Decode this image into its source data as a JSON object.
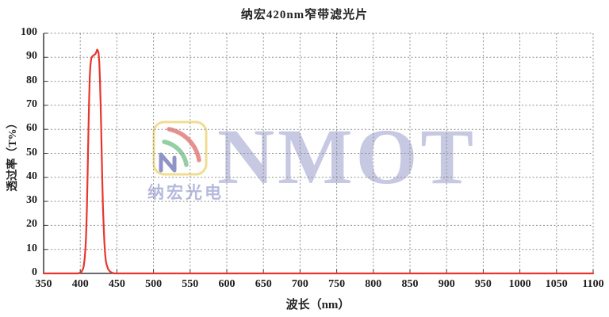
{
  "title": "纳宏420nm窄带滤光片",
  "watermark": {
    "text": "NMOT",
    "company": "纳宏光电"
  },
  "colors": {
    "curve": "#e8352d",
    "grid": "#909090",
    "axis": "#3a3a3a",
    "tick": "#3a3a3a",
    "text": "#242424",
    "watermark_text": "#c7c8e2",
    "watermark_company": "#b5badd",
    "logo_border": "#f0dd90",
    "logo_red": "#e89090",
    "logo_green": "#94cfa4",
    "logo_blue": "#8f94c6"
  },
  "chart_data": {
    "type": "line",
    "title": "纳宏420nm窄带滤光片",
    "xlabel": "波长（nm）",
    "ylabel": "透过率（T%）",
    "xlim": [
      350,
      1100
    ],
    "ylim": [
      0,
      100
    ],
    "x_ticks": [
      350,
      400,
      450,
      500,
      550,
      600,
      650,
      700,
      750,
      800,
      850,
      900,
      950,
      1000,
      1050,
      1100
    ],
    "y_ticks": [
      0,
      10,
      20,
      30,
      40,
      50,
      60,
      70,
      80,
      90,
      100
    ],
    "grid": "dashed",
    "legend": "none",
    "series": [
      {
        "name": "transmittance",
        "color": "#e8352d",
        "points": [
          [
            350,
            0
          ],
          [
            370,
            0
          ],
          [
            390,
            0
          ],
          [
            397,
            0
          ],
          [
            400,
            0.3
          ],
          [
            402,
            0.8
          ],
          [
            404,
            2
          ],
          [
            405,
            3.5
          ],
          [
            406,
            6
          ],
          [
            407,
            10
          ],
          [
            408,
            16
          ],
          [
            409,
            26
          ],
          [
            410,
            40
          ],
          [
            411,
            57
          ],
          [
            412,
            71
          ],
          [
            413,
            82
          ],
          [
            414,
            87
          ],
          [
            415,
            89.5
          ],
          [
            416,
            90.2
          ],
          [
            418,
            90.8
          ],
          [
            420,
            91.2
          ],
          [
            421,
            91.6
          ],
          [
            422,
            92.2
          ],
          [
            423,
            93.2
          ],
          [
            424,
            92.8
          ],
          [
            425,
            91.8
          ],
          [
            426,
            88
          ],
          [
            427,
            80
          ],
          [
            428,
            68
          ],
          [
            429,
            54
          ],
          [
            430,
            40
          ],
          [
            431,
            28
          ],
          [
            432,
            19
          ],
          [
            433,
            12.5
          ],
          [
            434,
            8
          ],
          [
            435,
            5.2
          ],
          [
            436,
            3.6
          ],
          [
            438,
            1.8
          ],
          [
            440,
            1
          ],
          [
            442,
            0.5
          ],
          [
            444,
            0.2
          ],
          [
            447,
            0
          ],
          [
            455,
            0
          ],
          [
            470,
            0
          ],
          [
            500,
            0
          ],
          [
            550,
            0
          ],
          [
            600,
            0
          ],
          [
            650,
            0
          ],
          [
            700,
            0
          ],
          [
            750,
            0
          ],
          [
            800,
            0
          ],
          [
            850,
            0
          ],
          [
            900,
            0
          ],
          [
            950,
            0
          ],
          [
            1000,
            0
          ],
          [
            1050,
            0
          ],
          [
            1100,
            0
          ]
        ]
      }
    ]
  }
}
